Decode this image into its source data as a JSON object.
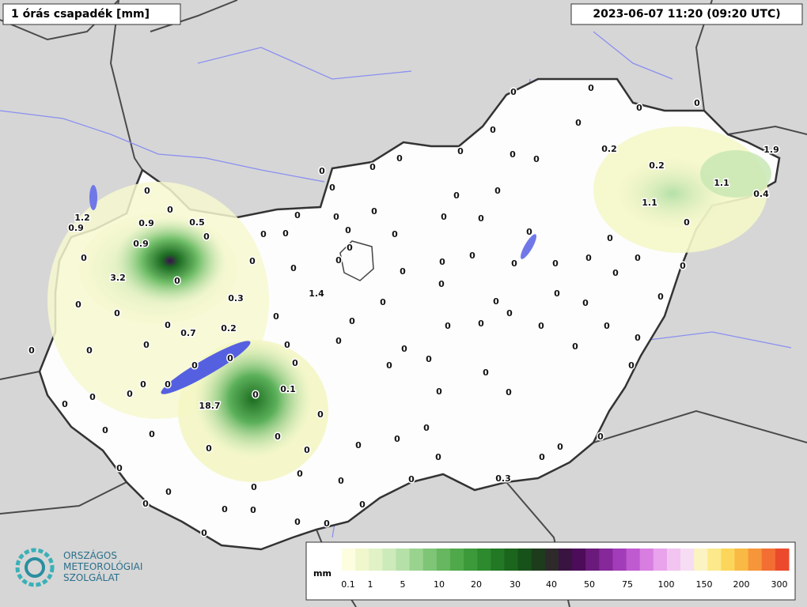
{
  "header": {
    "title": "1 órás csapadék [mm]",
    "timestamp": "2023-06-07 11:20 (09:20 UTC)"
  },
  "logo": {
    "lines": [
      "ORSZÁGOS",
      "METEOROLÓGIAI",
      "SZOLGÁLAT"
    ]
  },
  "legend": {
    "unit": "mm",
    "ticks": [
      0.1,
      1,
      5,
      10,
      20,
      30,
      40,
      50,
      75,
      100,
      150,
      200,
      300
    ],
    "colors": [
      "#fdfde0",
      "#f0f7cc",
      "#e0f2c6",
      "#cdeabb",
      "#b5e0a8",
      "#9ad38f",
      "#7fc577",
      "#66b75f",
      "#4fa94a",
      "#3c9a3a",
      "#2d8a2e",
      "#227824",
      "#1b651d",
      "#17521a",
      "#1d3c1b",
      "#2e2a2c",
      "#3a1440",
      "#4d0c5a",
      "#6a1a7a",
      "#86289a",
      "#a23cb8",
      "#c05ad0",
      "#d87ee0",
      "#e9a2ec",
      "#f2c4f0",
      "#f7ddf3",
      "#fbf3c2",
      "#fbe98c",
      "#fbd65a",
      "#f9b945",
      "#f6953a",
      "#f26e32",
      "#ec4a2c"
    ]
  },
  "stations": [
    0,
    0,
    0,
    0,
    0,
    0,
    0.2,
    1.9,
    0,
    0,
    0,
    0,
    0,
    0,
    0,
    0.2,
    1.1,
    0.4,
    1.1,
    0,
    0,
    0,
    0,
    0,
    0,
    0,
    0,
    0,
    1.2,
    0.9,
    0.9,
    0.5,
    0,
    0,
    0,
    0,
    0,
    0,
    0,
    0.9,
    0,
    0,
    0,
    0,
    0,
    0,
    0,
    0,
    0,
    0,
    0,
    0,
    0,
    0,
    3.2,
    0,
    0,
    0,
    0,
    0.3,
    1.4,
    0,
    0,
    0,
    0,
    0,
    0,
    0,
    0,
    0,
    0.2,
    0.7,
    0,
    0,
    0,
    0,
    0,
    0,
    0,
    0,
    0,
    0,
    0,
    0,
    0,
    0,
    0,
    0,
    0,
    0,
    0,
    0,
    0,
    0,
    0,
    0.1,
    0,
    0,
    0,
    18.7,
    0,
    0,
    0,
    0,
    0,
    0,
    0,
    0,
    0,
    0,
    0,
    0,
    0,
    0,
    0,
    0,
    0,
    0,
    0,
    0.3,
    0,
    0,
    0,
    0,
    0,
    0,
    0,
    0,
    0,
    0,
    0,
    0
  ]
}
